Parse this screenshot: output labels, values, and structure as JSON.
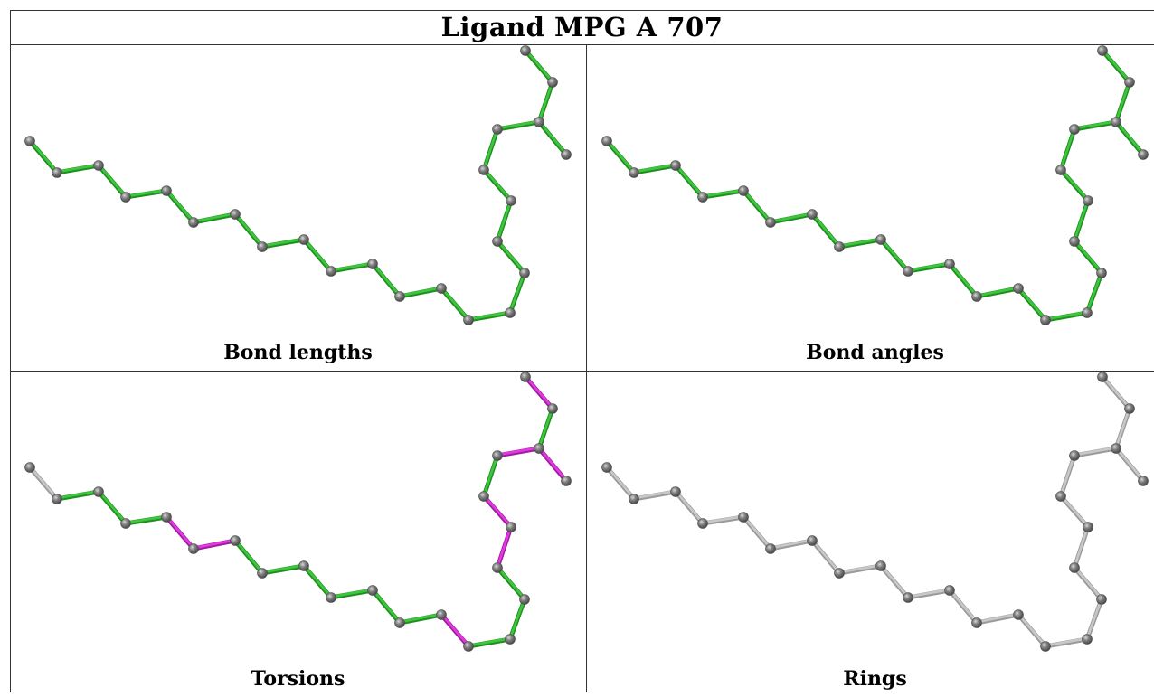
{
  "title": "Ligand MPG A 707",
  "colors": {
    "ok_bond": "#3ec73e",
    "ok_bond_dark": "#1f8f1f",
    "outlier_bond": "#e03ae0",
    "outlier_bond_dark": "#a01ca0",
    "neutral_bond": "#c8c8c8",
    "neutral_bond_dark": "#9a9a9a",
    "atom": "#808080",
    "atom_dark": "#4a4a4a"
  },
  "panels": [
    {
      "caption": "Bond lengths",
      "bond_status": [
        "ok",
        "ok",
        "ok",
        "ok",
        "ok",
        "ok",
        "ok",
        "ok",
        "ok",
        "ok",
        "ok",
        "ok",
        "ok",
        "ok",
        "ok",
        "ok",
        "ok",
        "ok",
        "ok",
        "ok",
        "ok",
        "ok",
        "ok",
        "ok",
        "ok",
        "ok"
      ]
    },
    {
      "caption": "Bond angles",
      "bond_status": [
        "ok",
        "ok",
        "ok",
        "ok",
        "ok",
        "ok",
        "ok",
        "ok",
        "ok",
        "ok",
        "ok",
        "ok",
        "ok",
        "ok",
        "ok",
        "ok",
        "ok",
        "ok",
        "ok",
        "ok",
        "ok",
        "ok",
        "ok",
        "ok",
        "ok",
        "ok"
      ]
    },
    {
      "caption": "Torsions",
      "bond_status": [
        "neutral",
        "ok",
        "ok",
        "ok",
        "outlier",
        "outlier",
        "ok",
        "ok",
        "ok",
        "ok",
        "ok",
        "ok",
        "outlier",
        "ok",
        "ok",
        "ok",
        "outlier",
        "outlier",
        "ok",
        "outlier",
        "ok",
        "outlier",
        "outlier",
        "ok",
        "neutral",
        "neutral"
      ]
    },
    {
      "caption": "Rings",
      "bond_status": [
        "neutral",
        "neutral",
        "neutral",
        "neutral",
        "neutral",
        "neutral",
        "neutral",
        "neutral",
        "neutral",
        "neutral",
        "neutral",
        "neutral",
        "neutral",
        "neutral",
        "neutral",
        "neutral",
        "neutral",
        "neutral",
        "neutral",
        "neutral",
        "neutral",
        "neutral",
        "neutral",
        "neutral",
        "neutral",
        "neutral"
      ]
    }
  ]
}
